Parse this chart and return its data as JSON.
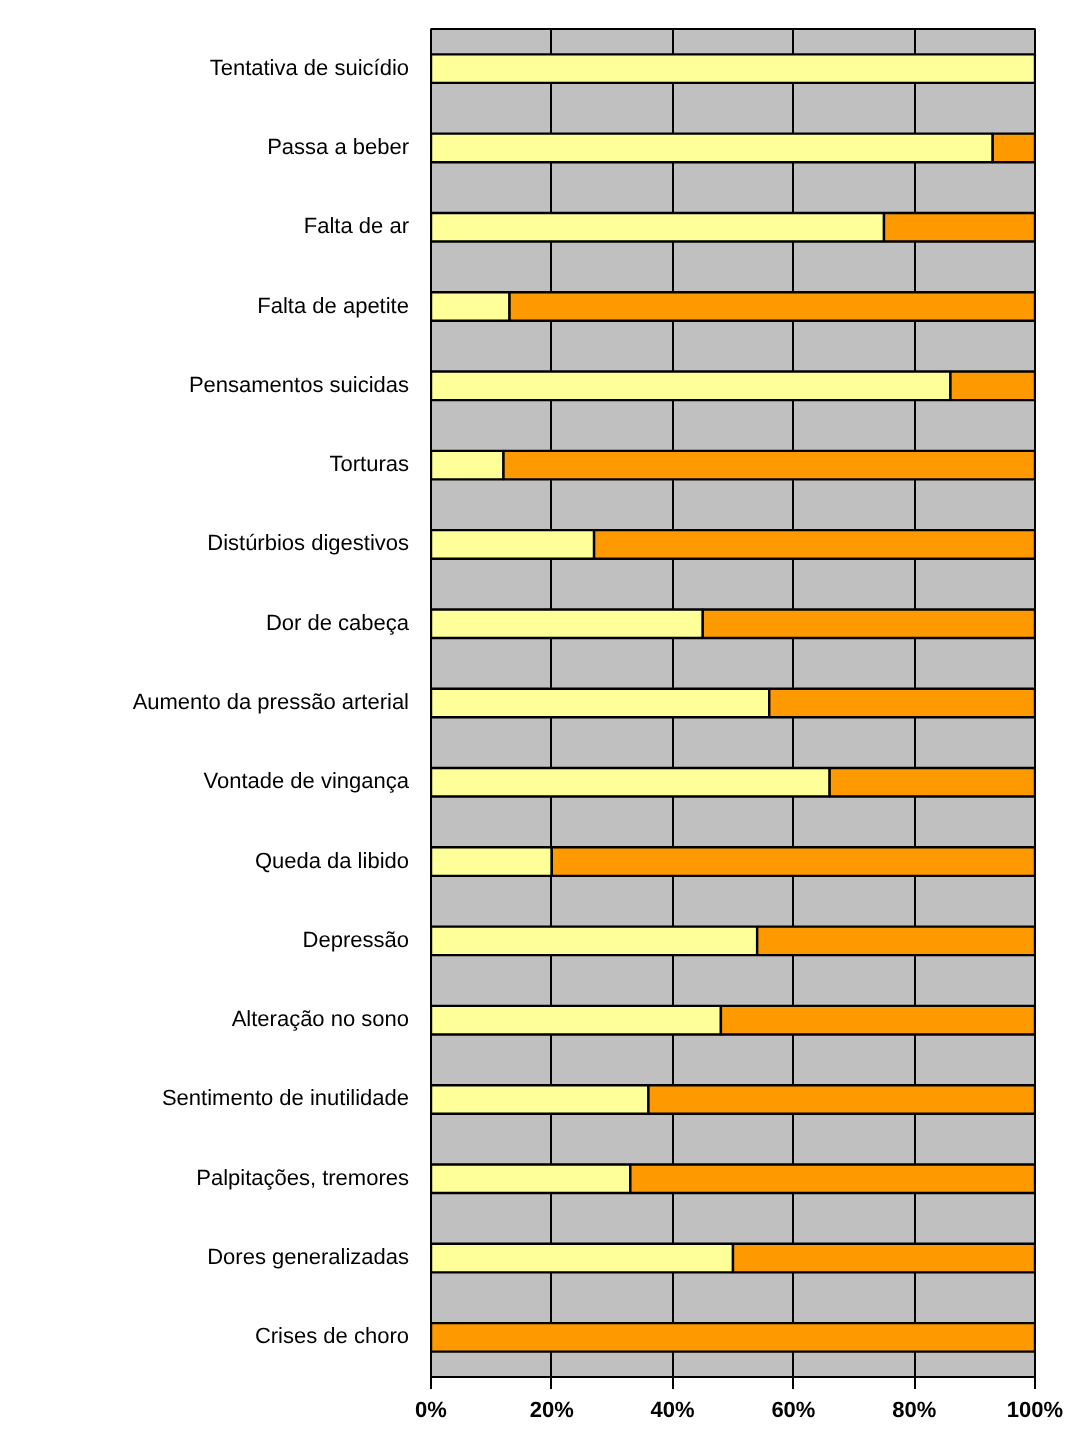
{
  "chart_data": {
    "type": "bar",
    "orientation": "horizontal",
    "stacked": true,
    "categories": [
      "Tentativa de suicídio",
      "Passa a beber",
      "Falta de ar",
      "Falta de apetite",
      "Pensamentos suicidas",
      "Torturas",
      "Distúrbios digestivos",
      "Dor de cabeça",
      "Aumento da pressão arterial",
      "Vontade de vingança",
      "Queda da libido",
      "Depressão",
      "Alteração no sono",
      "Sentimento de inutilidade",
      "Palpitações, tremores",
      "Dores generalizadas",
      "Crises de choro"
    ],
    "series": [
      {
        "color": "#ffff99",
        "values": [
          100,
          93,
          75,
          13,
          86,
          12,
          27,
          45,
          56,
          66,
          20,
          54,
          48,
          36,
          33,
          50,
          0
        ]
      },
      {
        "color": "#ff9900",
        "values": [
          0,
          7,
          25,
          87,
          14,
          88,
          73,
          55,
          44,
          34,
          80,
          46,
          52,
          64,
          67,
          50,
          100
        ]
      }
    ],
    "xlim": [
      0,
      100
    ],
    "xticks": [
      {
        "value": 0,
        "label": "0%"
      },
      {
        "value": 20,
        "label": "20%"
      },
      {
        "value": 40,
        "label": "40%"
      },
      {
        "value": 60,
        "label": "60%"
      },
      {
        "value": 80,
        "label": "80%"
      },
      {
        "value": 100,
        "label": "100%"
      }
    ],
    "grid": "x"
  }
}
